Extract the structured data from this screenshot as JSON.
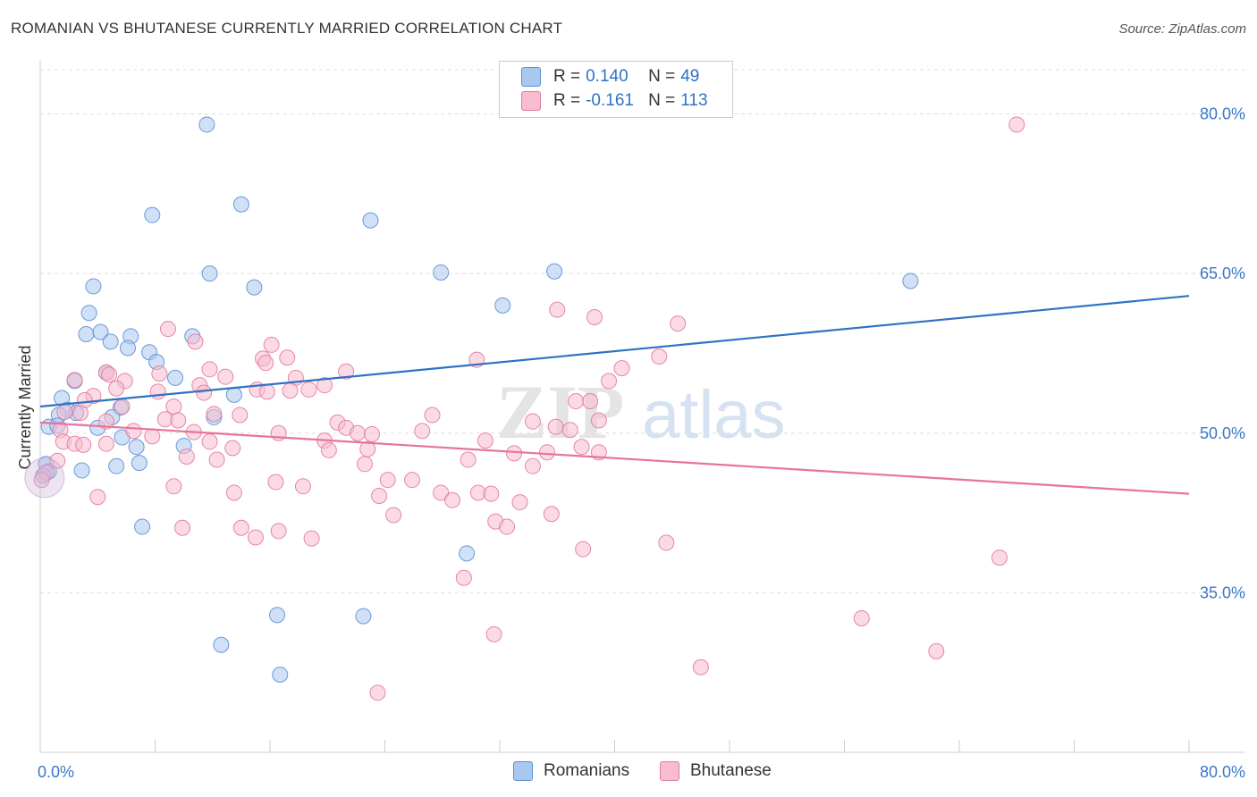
{
  "title": "ROMANIAN VS BHUTANESE CURRENTLY MARRIED CORRELATION CHART",
  "source": "Source: ZipAtlas.com",
  "watermark": {
    "zip": "ZIP",
    "atlas": "atlas"
  },
  "legend": {
    "rows": [
      {
        "r_label": "R =",
        "r_value": "0.140",
        "n_label": "N =",
        "n_value": "49",
        "color": "#a9c8f0",
        "border": "#5b8fd6"
      },
      {
        "r_label": "R =",
        "r_value": "-0.161",
        "n_label": "N =",
        "n_value": "113",
        "color": "#f7bcd0",
        "border": "#e27ba0"
      }
    ]
  },
  "bottom_legend": [
    {
      "label": "Romanians",
      "color": "#a9c8f0",
      "border": "#5b8fd6"
    },
    {
      "label": "Bhutanese",
      "color": "#f7bcd0",
      "border": "#e27ba0"
    }
  ],
  "chart_data": {
    "type": "scatter",
    "title": "ROMANIAN VS BHUTANESE CURRENTLY MARRIED CORRELATION CHART",
    "xlabel": "",
    "ylabel": "Currently Married",
    "xlim": [
      0,
      80
    ],
    "ylim": [
      20,
      85
    ],
    "x_tick_labels": [
      "0.0%",
      "80.0%"
    ],
    "y_ticks": [
      35,
      50,
      65,
      80
    ],
    "y_tick_labels": [
      "35.0%",
      "50.0%",
      "65.0%",
      "80.0%"
    ],
    "grid": true,
    "colors": {
      "romanians": "#2f72c4",
      "bhutanese": "#e8739b",
      "tick_label": "#3b78c8"
    },
    "series": [
      {
        "name": "Romanians",
        "fill": "#a9c8f0",
        "stroke": "#5b8fd6",
        "trend": {
          "x": [
            0,
            80
          ],
          "y": [
            52.5,
            62.9
          ]
        },
        "points": [
          [
            11.6,
            79.0
          ],
          [
            14.0,
            71.5
          ],
          [
            7.8,
            70.5
          ],
          [
            23.0,
            70.0
          ],
          [
            11.8,
            65.0
          ],
          [
            27.9,
            65.1
          ],
          [
            35.8,
            65.2
          ],
          [
            60.6,
            64.3
          ],
          [
            3.7,
            63.8
          ],
          [
            14.9,
            63.7
          ],
          [
            32.2,
            62.0
          ],
          [
            3.4,
            61.3
          ],
          [
            3.2,
            59.3
          ],
          [
            4.2,
            59.5
          ],
          [
            6.3,
            59.1
          ],
          [
            10.6,
            59.1
          ],
          [
            4.9,
            58.6
          ],
          [
            6.1,
            58.0
          ],
          [
            7.6,
            57.6
          ],
          [
            8.1,
            56.7
          ],
          [
            4.6,
            55.7
          ],
          [
            9.4,
            55.2
          ],
          [
            2.4,
            54.9
          ],
          [
            13.5,
            53.6
          ],
          [
            1.5,
            53.3
          ],
          [
            5.6,
            52.4
          ],
          [
            1.9,
            52.2
          ],
          [
            1.3,
            51.7
          ],
          [
            2.5,
            51.9
          ],
          [
            5.0,
            51.5
          ],
          [
            12.1,
            51.5
          ],
          [
            0.6,
            50.6
          ],
          [
            1.2,
            50.7
          ],
          [
            4.0,
            50.5
          ],
          [
            5.7,
            49.6
          ],
          [
            6.7,
            48.7
          ],
          [
            10.0,
            48.8
          ],
          [
            0.4,
            47.1
          ],
          [
            2.9,
            46.5
          ],
          [
            5.3,
            46.9
          ],
          [
            6.9,
            47.2
          ],
          [
            0.6,
            46.4
          ],
          [
            7.1,
            41.2
          ],
          [
            29.7,
            38.7
          ],
          [
            16.5,
            32.9
          ],
          [
            22.5,
            32.8
          ],
          [
            12.6,
            30.1
          ],
          [
            16.7,
            27.3
          ],
          [
            0.2,
            46.0
          ]
        ]
      },
      {
        "name": "Bhutanese",
        "fill": "#f7bcd0",
        "stroke": "#e27ba0",
        "trend": {
          "x": [
            0,
            80
          ],
          "y": [
            51.0,
            44.3
          ]
        },
        "points": [
          [
            68.0,
            79.0
          ],
          [
            36.0,
            61.6
          ],
          [
            38.6,
            60.9
          ],
          [
            44.4,
            60.3
          ],
          [
            8.9,
            59.8
          ],
          [
            10.8,
            58.6
          ],
          [
            16.1,
            58.3
          ],
          [
            17.2,
            57.1
          ],
          [
            15.5,
            57.0
          ],
          [
            15.7,
            56.6
          ],
          [
            30.4,
            56.9
          ],
          [
            43.1,
            57.2
          ],
          [
            11.8,
            56.0
          ],
          [
            21.3,
            55.8
          ],
          [
            40.5,
            56.1
          ],
          [
            4.6,
            55.7
          ],
          [
            4.8,
            55.5
          ],
          [
            8.3,
            55.6
          ],
          [
            12.9,
            55.3
          ],
          [
            17.8,
            55.2
          ],
          [
            2.4,
            55.0
          ],
          [
            5.9,
            54.9
          ],
          [
            11.1,
            54.5
          ],
          [
            15.1,
            54.1
          ],
          [
            39.6,
            54.9
          ],
          [
            19.8,
            54.5
          ],
          [
            5.3,
            54.2
          ],
          [
            8.2,
            53.9
          ],
          [
            11.4,
            53.8
          ],
          [
            15.8,
            53.9
          ],
          [
            17.4,
            54.0
          ],
          [
            18.7,
            54.1
          ],
          [
            3.7,
            53.5
          ],
          [
            3.1,
            53.1
          ],
          [
            37.3,
            53.0
          ],
          [
            38.3,
            53.0
          ],
          [
            5.7,
            52.5
          ],
          [
            9.3,
            52.5
          ],
          [
            1.7,
            52.0
          ],
          [
            2.8,
            51.9
          ],
          [
            12.1,
            51.8
          ],
          [
            13.9,
            51.7
          ],
          [
            27.3,
            51.7
          ],
          [
            8.7,
            51.3
          ],
          [
            4.6,
            51.1
          ],
          [
            9.6,
            51.2
          ],
          [
            20.7,
            51.0
          ],
          [
            34.3,
            51.1
          ],
          [
            35.9,
            50.6
          ],
          [
            36.9,
            50.3
          ],
          [
            1.4,
            50.3
          ],
          [
            6.5,
            50.2
          ],
          [
            10.7,
            50.1
          ],
          [
            16.6,
            50.0
          ],
          [
            21.3,
            50.5
          ],
          [
            22.1,
            50.0
          ],
          [
            23.1,
            49.9
          ],
          [
            26.6,
            50.2
          ],
          [
            38.9,
            51.2
          ],
          [
            4.6,
            49.0
          ],
          [
            7.8,
            49.7
          ],
          [
            11.8,
            49.2
          ],
          [
            19.8,
            49.3
          ],
          [
            31.0,
            49.3
          ],
          [
            1.6,
            49.2
          ],
          [
            2.4,
            49.0
          ],
          [
            3.0,
            48.9
          ],
          [
            13.4,
            48.6
          ],
          [
            20.1,
            48.4
          ],
          [
            22.8,
            48.5
          ],
          [
            33.0,
            48.1
          ],
          [
            35.3,
            48.2
          ],
          [
            37.7,
            48.7
          ],
          [
            38.9,
            48.2
          ],
          [
            10.2,
            47.8
          ],
          [
            12.3,
            47.5
          ],
          [
            22.6,
            47.1
          ],
          [
            29.8,
            47.5
          ],
          [
            34.3,
            46.9
          ],
          [
            24.2,
            45.6
          ],
          [
            25.9,
            45.6
          ],
          [
            16.4,
            45.4
          ],
          [
            18.3,
            45.0
          ],
          [
            9.3,
            45.0
          ],
          [
            13.5,
            44.4
          ],
          [
            30.5,
            44.4
          ],
          [
            27.9,
            44.4
          ],
          [
            31.4,
            44.3
          ],
          [
            4.0,
            44.0
          ],
          [
            23.6,
            44.1
          ],
          [
            28.7,
            43.7
          ],
          [
            33.4,
            43.5
          ],
          [
            24.6,
            42.3
          ],
          [
            35.6,
            42.4
          ],
          [
            31.7,
            41.7
          ],
          [
            32.5,
            41.2
          ],
          [
            9.9,
            41.1
          ],
          [
            14.0,
            41.1
          ],
          [
            16.6,
            40.8
          ],
          [
            15.0,
            40.2
          ],
          [
            18.9,
            40.1
          ],
          [
            37.8,
            39.1
          ],
          [
            43.6,
            39.7
          ],
          [
            66.8,
            38.3
          ],
          [
            29.5,
            36.4
          ],
          [
            57.2,
            32.6
          ],
          [
            31.6,
            31.1
          ],
          [
            62.4,
            29.5
          ],
          [
            46.0,
            28.0
          ],
          [
            23.5,
            25.6
          ],
          [
            0.4,
            46.3
          ],
          [
            1.2,
            47.4
          ],
          [
            0.1,
            45.6
          ]
        ]
      }
    ]
  }
}
